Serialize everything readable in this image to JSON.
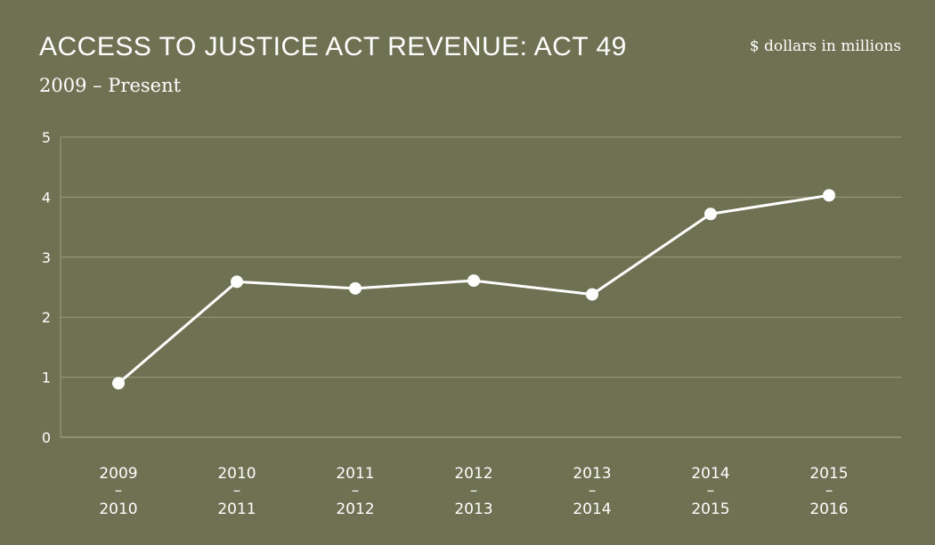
{
  "header": {
    "title": "ACCESS TO JUSTICE ACT REVENUE: ACT 49",
    "subtitle": "2009 – Present",
    "units": "$ dollars in millions"
  },
  "colors": {
    "background": "#6e7252",
    "gridline": "#9a9d7e",
    "line": "#ffffff",
    "text": "#ffffff"
  },
  "chart_data": {
    "type": "line",
    "title": "ACCESS TO JUSTICE ACT REVENUE: ACT 49",
    "subtitle": "2009 – Present",
    "ylabel": "$ dollars in millions",
    "xlabel": "",
    "categories": [
      [
        "2009",
        "–",
        "2010"
      ],
      [
        "2010",
        "–",
        "2011"
      ],
      [
        "2011",
        "–",
        "2012"
      ],
      [
        "2012",
        "–",
        "2013"
      ],
      [
        "2013",
        "–",
        "2014"
      ],
      [
        "2014",
        "–",
        "2015"
      ],
      [
        "2015",
        "–",
        "2016"
      ]
    ],
    "series": [
      {
        "values": [
          0.9,
          2.59,
          2.48,
          2.61,
          2.38,
          3.72,
          4.03
        ]
      }
    ],
    "ylim": [
      0,
      5
    ],
    "yticks": [
      0,
      1,
      2,
      3,
      4,
      5
    ],
    "grid": true,
    "markers": true
  }
}
